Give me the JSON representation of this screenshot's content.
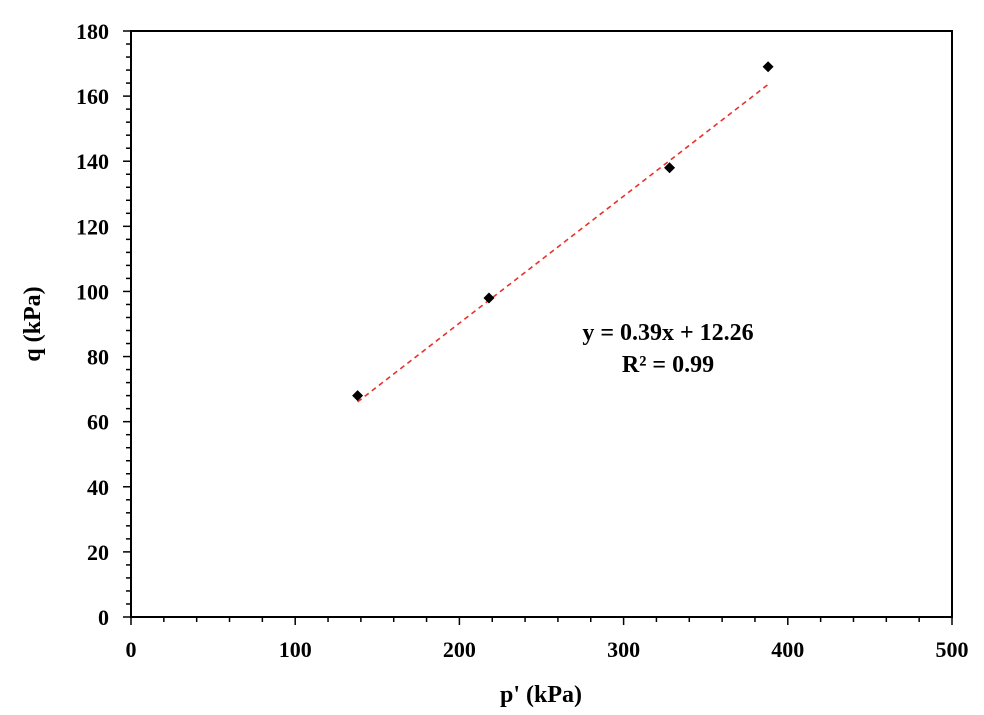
{
  "chart_data": {
    "type": "scatter",
    "xlabel": "p' (kPa)",
    "ylabel": "q (kPa)",
    "xlim": [
      0,
      500
    ],
    "ylim": [
      0,
      180
    ],
    "x_ticks": [
      0,
      100,
      200,
      300,
      400,
      500
    ],
    "y_ticks": [
      0,
      20,
      40,
      60,
      80,
      100,
      120,
      140,
      160,
      180
    ],
    "x_minor_step": 20,
    "y_minor_step": 4,
    "grid": false,
    "legend": "none",
    "series": [
      {
        "points": [
          {
            "x": 138,
            "y": 68
          },
          {
            "x": 218,
            "y": 98
          },
          {
            "x": 328,
            "y": 138
          },
          {
            "x": 388,
            "y": 169
          }
        ],
        "marker": "diamond",
        "color": "#000000"
      }
    ],
    "trendline": {
      "slope": 0.39,
      "intercept": 12.26,
      "x_range": [
        138,
        388
      ],
      "color": "#e8312a",
      "style": "dashed"
    },
    "annotations": [
      "y = 0.39x + 12.26",
      "R² = 0.99"
    ]
  }
}
